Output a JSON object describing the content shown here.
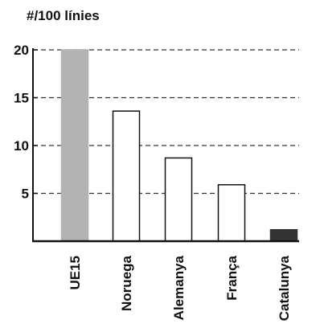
{
  "chart_data": {
    "type": "bar",
    "unit_label": "#/100 línies",
    "categories": [
      "UE15",
      "Noruega",
      "Alemanya",
      "França",
      "Catalunya"
    ],
    "values": [
      20,
      13.6,
      8.7,
      5.9,
      1.2
    ],
    "bar_styles": [
      {
        "fill": "#b3b3b3",
        "stroke": "#b3b3b3"
      },
      {
        "fill": "#ffffff",
        "stroke": "#111111"
      },
      {
        "fill": "#ffffff",
        "stroke": "#111111"
      },
      {
        "fill": "#ffffff",
        "stroke": "#111111"
      },
      {
        "fill": "#333333",
        "stroke": "#333333"
      }
    ],
    "y_ticks": [
      5,
      10,
      15,
      20
    ],
    "y_tick_labels": [
      "5",
      "10",
      "15",
      "20"
    ],
    "ylim": [
      0,
      20
    ],
    "grid": "dashed horizontal",
    "legend": "none"
  }
}
